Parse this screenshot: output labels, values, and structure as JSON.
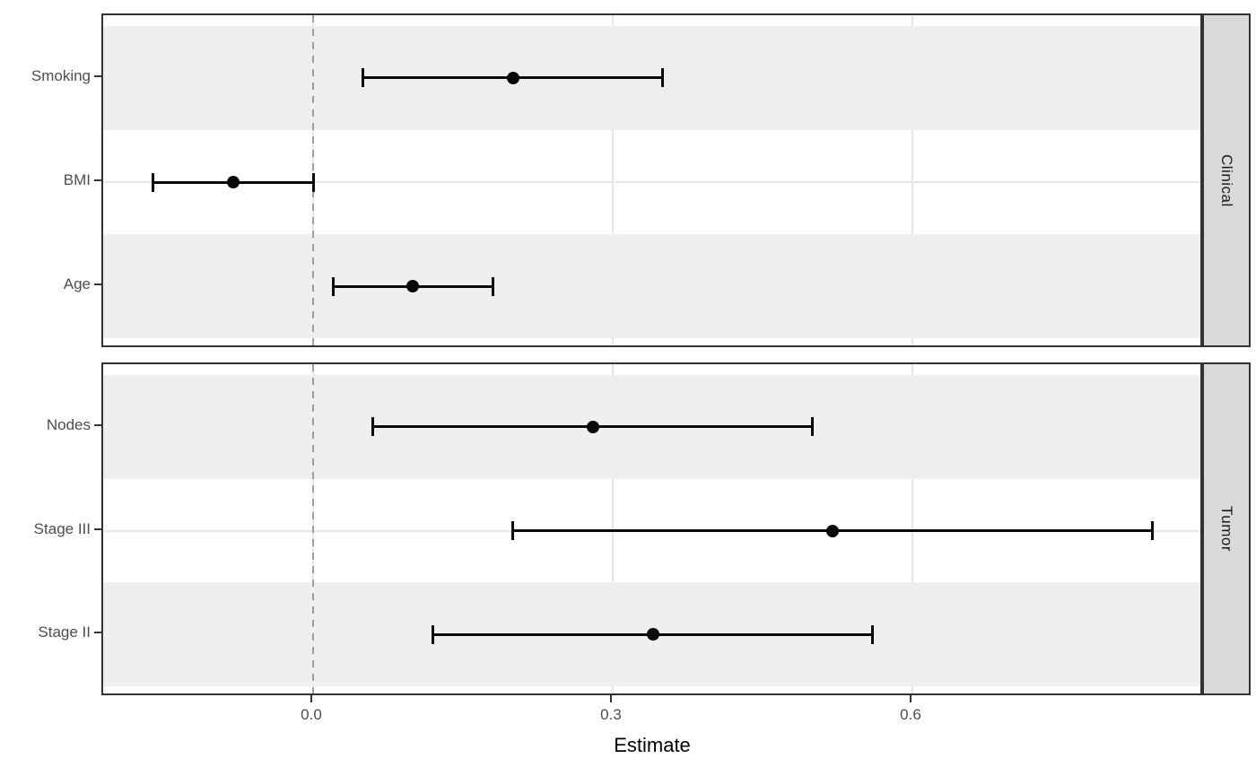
{
  "chart_data": {
    "type": "forest",
    "xlabel": "Estimate",
    "x_ticks": [
      {
        "value": 0.0,
        "label": "0.0"
      },
      {
        "value": 0.3,
        "label": "0.3"
      },
      {
        "value": 0.6,
        "label": "0.6"
      }
    ],
    "xlim": [
      -0.21,
      0.893
    ],
    "reference_line": 0.0,
    "grid": true,
    "legend": null,
    "facets": [
      {
        "label": "Clinical",
        "rows": [
          {
            "label": "Smoking",
            "estimate": 0.2,
            "ci_low": 0.05,
            "ci_high": 0.35
          },
          {
            "label": "BMI",
            "estimate": -0.08,
            "ci_low": -0.16,
            "ci_high": 0.0
          },
          {
            "label": "Age",
            "estimate": 0.1,
            "ci_low": 0.02,
            "ci_high": 0.18
          }
        ]
      },
      {
        "label": "Tumor",
        "rows": [
          {
            "label": "Nodes",
            "estimate": 0.28,
            "ci_low": 0.06,
            "ci_high": 0.5
          },
          {
            "label": "Stage III",
            "estimate": 0.52,
            "ci_low": 0.2,
            "ci_high": 0.84
          },
          {
            "label": "Stage II",
            "estimate": 0.34,
            "ci_low": 0.12,
            "ci_high": 0.56
          }
        ]
      }
    ],
    "colors": {
      "point_and_ci": "#0a0a0a",
      "row_stripe": "#efefef",
      "gridline": "#e6e6e6",
      "panel_border": "#333333",
      "strip_background": "#d9d9d9",
      "strip_text": "#1a1a1a",
      "axis_text": "#4d4d4d",
      "axis_title": "#000000",
      "reference_line": "#9e9e9e"
    }
  }
}
